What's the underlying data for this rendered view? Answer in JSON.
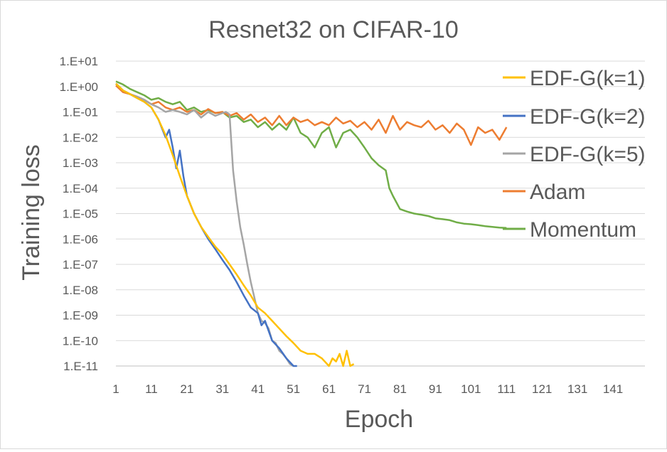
{
  "chart_data": {
    "type": "line",
    "title": "Resnet32 on CIFAR-10",
    "xlabel": "Epoch",
    "ylabel": "Training loss",
    "y_scale": "log",
    "xlim": [
      1,
      150
    ],
    "ylim": [
      1e-11,
      10
    ],
    "x_ticks": [
      "1",
      "11",
      "21",
      "31",
      "41",
      "51",
      "61",
      "71",
      "81",
      "91",
      "101",
      "111",
      "121",
      "131",
      "141"
    ],
    "y_ticks": [
      "1.E+01",
      "1.E+00",
      "1.E-01",
      "1.E-02",
      "1.E-03",
      "1.E-04",
      "1.E-05",
      "1.E-06",
      "1.E-07",
      "1.E-08",
      "1.E-09",
      "1.E-10",
      "1.E-11"
    ],
    "grid": "horizontal",
    "legend_position": "right",
    "series": [
      {
        "name": "EDF-G(k=1)",
        "color": "#FFC000",
        "x": [
          1,
          3,
          5,
          7,
          9,
          11,
          13,
          15,
          17,
          19,
          21,
          23,
          25,
          27,
          29,
          31,
          33,
          35,
          37,
          39,
          41,
          43,
          45,
          47,
          49,
          51,
          53,
          55,
          57,
          59,
          61,
          62,
          63,
          64,
          65,
          66,
          67,
          68
        ],
        "y": [
          1.3,
          0.7,
          0.5,
          0.35,
          0.25,
          0.15,
          0.05,
          0.012,
          0.002,
          0.0003,
          5e-05,
          1e-05,
          3e-06,
          1.2e-06,
          5e-07,
          2.5e-07,
          1e-07,
          4e-08,
          1.5e-08,
          6e-09,
          2e-09,
          1.2e-09,
          6e-10,
          3e-10,
          1.5e-10,
          8e-11,
          4e-11,
          3e-11,
          3e-11,
          2e-11,
          1e-11,
          2e-11,
          1.5e-11,
          3e-11,
          1e-11,
          4e-11,
          1e-11,
          1.2e-11
        ]
      },
      {
        "name": "EDF-G(k=2)",
        "color": "#4472C4",
        "x": [
          1,
          3,
          5,
          7,
          9,
          11,
          13,
          15,
          16,
          17,
          18,
          19,
          20,
          21,
          23,
          25,
          27,
          29,
          31,
          33,
          35,
          37,
          39,
          41,
          42,
          43,
          45,
          47,
          49,
          51,
          52
        ],
        "y": [
          1.3,
          0.7,
          0.5,
          0.35,
          0.25,
          0.15,
          0.05,
          0.01,
          0.02,
          0.004,
          0.0006,
          0.003,
          0.0003,
          5e-05,
          1e-05,
          3e-06,
          1e-06,
          4e-07,
          1.5e-07,
          6e-08,
          2e-08,
          6e-09,
          2e-09,
          1.2e-09,
          4e-10,
          6e-10,
          1e-10,
          5e-11,
          2e-11,
          1e-11,
          8e-12
        ]
      },
      {
        "name": "EDF-G(k=5)",
        "color": "#A5A5A5",
        "x": [
          1,
          3,
          5,
          7,
          9,
          11,
          13,
          15,
          17,
          19,
          21,
          23,
          25,
          27,
          29,
          31,
          32,
          33,
          34,
          35,
          36,
          37,
          38,
          39,
          40,
          41,
          42,
          43,
          44,
          45,
          46,
          47,
          48,
          49,
          50,
          51
        ],
        "y": [
          1.3,
          0.7,
          0.5,
          0.4,
          0.3,
          0.2,
          0.15,
          0.1,
          0.12,
          0.1,
          0.08,
          0.12,
          0.06,
          0.1,
          0.07,
          0.09,
          0.1,
          0.08,
          0.0005,
          3e-05,
          3e-06,
          6e-07,
          1e-07,
          2e-08,
          5e-09,
          1.2e-09,
          6e-10,
          5e-10,
          3e-10,
          1e-10,
          8e-11,
          4e-11,
          3e-11,
          2e-11,
          1.2e-11,
          1e-11
        ]
      },
      {
        "name": "Adam",
        "color": "#ED7D31",
        "x": [
          1,
          3,
          5,
          7,
          9,
          11,
          13,
          15,
          17,
          19,
          21,
          23,
          25,
          27,
          29,
          31,
          33,
          35,
          37,
          39,
          41,
          43,
          45,
          47,
          49,
          51,
          53,
          55,
          57,
          59,
          61,
          63,
          65,
          67,
          69,
          71,
          73,
          75,
          77,
          79,
          81,
          83,
          85,
          87,
          89,
          91,
          93,
          95,
          97,
          99,
          101,
          103,
          105,
          107,
          109,
          111
        ],
        "y": [
          1.1,
          0.6,
          0.5,
          0.4,
          0.3,
          0.2,
          0.25,
          0.15,
          0.12,
          0.15,
          0.1,
          0.12,
          0.08,
          0.13,
          0.09,
          0.1,
          0.07,
          0.09,
          0.05,
          0.08,
          0.04,
          0.06,
          0.03,
          0.07,
          0.03,
          0.06,
          0.04,
          0.05,
          0.03,
          0.04,
          0.03,
          0.06,
          0.035,
          0.045,
          0.025,
          0.04,
          0.02,
          0.05,
          0.015,
          0.07,
          0.02,
          0.04,
          0.03,
          0.025,
          0.045,
          0.02,
          0.03,
          0.015,
          0.035,
          0.02,
          0.005,
          0.025,
          0.015,
          0.02,
          0.008,
          0.025
        ]
      },
      {
        "name": "Momentum",
        "color": "#70AD47",
        "x": [
          1,
          3,
          5,
          7,
          9,
          11,
          13,
          15,
          17,
          19,
          21,
          23,
          25,
          27,
          29,
          31,
          33,
          35,
          37,
          39,
          41,
          43,
          45,
          47,
          49,
          51,
          53,
          55,
          57,
          59,
          61,
          63,
          65,
          67,
          69,
          71,
          73,
          75,
          77,
          78,
          79,
          81,
          83,
          85,
          87,
          89,
          91,
          93,
          95,
          97,
          99,
          101,
          103,
          105,
          107,
          109,
          111
        ],
        "y": [
          1.6,
          1.2,
          0.8,
          0.6,
          0.45,
          0.3,
          0.35,
          0.25,
          0.2,
          0.25,
          0.12,
          0.15,
          0.1,
          0.12,
          0.09,
          0.1,
          0.06,
          0.07,
          0.04,
          0.05,
          0.025,
          0.04,
          0.02,
          0.035,
          0.02,
          0.06,
          0.015,
          0.01,
          0.004,
          0.015,
          0.025,
          0.004,
          0.015,
          0.02,
          0.01,
          0.004,
          0.0015,
          0.0008,
          0.0005,
          0.0001,
          5e-05,
          1.5e-05,
          1.2e-05,
          1e-05,
          9e-06,
          8e-06,
          6.5e-06,
          6e-06,
          5.5e-06,
          4.5e-06,
          4e-06,
          3.8e-06,
          3.5e-06,
          3.2e-06,
          3e-06,
          2.8e-06,
          2.7e-06
        ]
      }
    ]
  }
}
